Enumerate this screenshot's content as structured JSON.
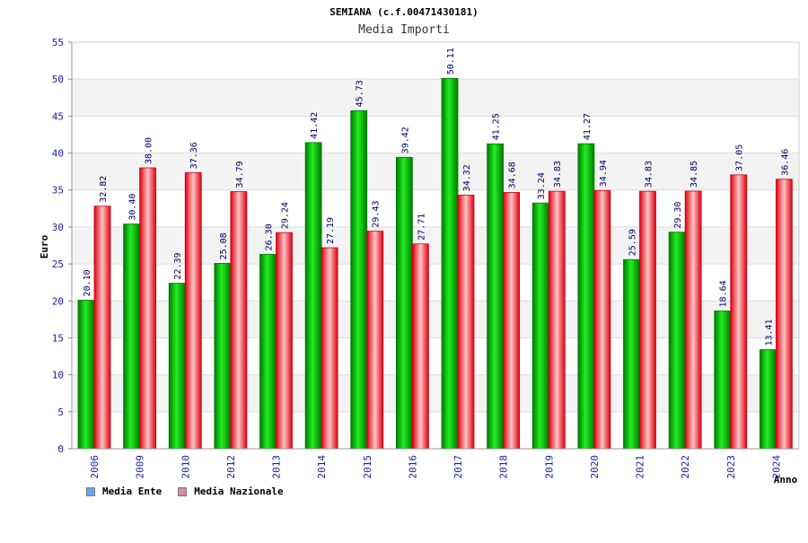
{
  "chart_data": {
    "type": "bar",
    "title": "SEMIANA (c.f.00471430181)",
    "subtitle": "Media Importi",
    "xlabel": "Anno",
    "ylabel": "Euro",
    "ylim": [
      0,
      55
    ],
    "yticks": [
      0,
      5,
      10,
      15,
      20,
      25,
      30,
      35,
      40,
      45,
      50,
      55
    ],
    "grid": true,
    "legend_position": "bottom-left",
    "categories": [
      "2006",
      "2009",
      "2010",
      "2012",
      "2013",
      "2014",
      "2015",
      "2016",
      "2017",
      "2018",
      "2019",
      "2020",
      "2021",
      "2022",
      "2023",
      "2024"
    ],
    "series": [
      {
        "name": "Media Ente",
        "color": "#00aa00",
        "legend_color": "#66aaee",
        "values": [
          20.1,
          30.4,
          22.39,
          25.08,
          26.3,
          41.42,
          45.73,
          39.42,
          50.11,
          41.25,
          33.24,
          41.27,
          25.59,
          29.3,
          18.64,
          13.41
        ],
        "labels": [
          "20.10",
          "30.40",
          "22.39",
          "25.08",
          "26.30",
          "41.42",
          "45.73",
          "39.42",
          "50.11",
          "41.25",
          "33.24",
          "41.27",
          "25.59",
          "29.30",
          "18.64",
          "13.41"
        ]
      },
      {
        "name": "Media Nazionale",
        "color": "#ee1111",
        "legend_color": "#dd88aa",
        "values": [
          32.82,
          38.0,
          37.36,
          34.79,
          29.24,
          27.19,
          29.43,
          27.71,
          34.32,
          34.68,
          34.83,
          34.94,
          34.83,
          34.85,
          37.05,
          36.46
        ],
        "labels": [
          "32.82",
          "38.00",
          "37.36",
          "34.79",
          "29.24",
          "27.19",
          "29.43",
          "27.71",
          "34.32",
          "34.68",
          "34.83",
          "34.94",
          "34.83",
          "34.85",
          "37.05",
          "36.46"
        ]
      }
    ]
  }
}
